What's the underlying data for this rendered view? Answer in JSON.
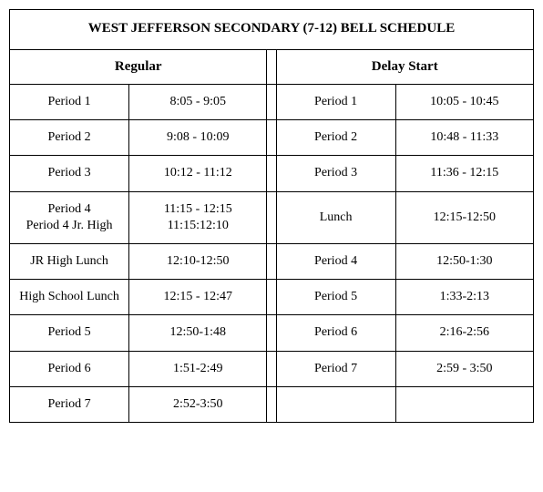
{
  "title": "WEST JEFFERSON SECONDARY (7-12) BELL SCHEDULE",
  "left": {
    "heading": "Regular",
    "rows": [
      {
        "label": "Period 1",
        "time": "8:05 - 9:05"
      },
      {
        "label": "Period 2",
        "time": "9:08 - 10:09"
      },
      {
        "label": "Period 3",
        "time": "10:12 - 11:12"
      },
      {
        "label": "Period 4\nPeriod 4 Jr. High",
        "time": "11:15 - 12:15\n11:15:12:10"
      },
      {
        "label": "JR High  Lunch",
        "time": "12:10-12:50"
      },
      {
        "label": "High School Lunch",
        "time": "12:15 - 12:47"
      },
      {
        "label": "Period 5",
        "time": "12:50-1:48"
      },
      {
        "label": "Period 6",
        "time": "1:51-2:49"
      },
      {
        "label": "Period 7",
        "time": "2:52-3:50"
      }
    ]
  },
  "right": {
    "heading": "Delay Start",
    "rows": [
      {
        "label": "Period 1",
        "time": "10:05 - 10:45"
      },
      {
        "label": "Period 2",
        "time": "10:48 - 11:33"
      },
      {
        "label": "Period 3",
        "time": "11:36 - 12:15"
      },
      {
        "label": "Lunch",
        "time": "12:15-12:50"
      },
      {
        "label": "Period 4",
        "time": "12:50-1:30"
      },
      {
        "label": "Period 5",
        "time": "1:33-2:13"
      },
      {
        "label": "Period 6",
        "time": "2:16-2:56"
      },
      {
        "label": "Period 7",
        "time": "2:59 - 3:50"
      },
      {
        "label": "",
        "time": ""
      }
    ]
  },
  "style": {
    "border_color": "#000000",
    "background": "#ffffff",
    "font_family": "Times New Roman",
    "title_fontsize": 15,
    "heading_fontsize": 15,
    "cell_fontsize": 14
  }
}
